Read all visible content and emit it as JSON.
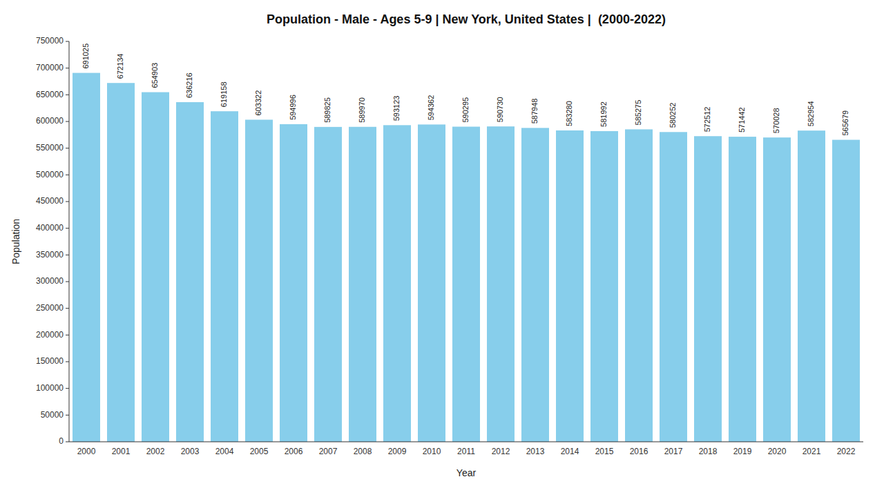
{
  "chart_data": {
    "type": "bar",
    "title": "Population - Male - Ages 5-9 | New York, United States |  (2000-2022)",
    "xlabel": "Year",
    "ylabel": "Population",
    "categories": [
      "2000",
      "2001",
      "2002",
      "2003",
      "2004",
      "2005",
      "2006",
      "2007",
      "2008",
      "2009",
      "2010",
      "2011",
      "2012",
      "2013",
      "2014",
      "2015",
      "2016",
      "2017",
      "2018",
      "2019",
      "2020",
      "2021",
      "2022"
    ],
    "values": [
      691025,
      672134,
      654903,
      636216,
      619158,
      603322,
      594996,
      589825,
      589970,
      593123,
      594362,
      590295,
      590730,
      587948,
      583280,
      581992,
      585275,
      580252,
      572512,
      571442,
      570028,
      582954,
      565679
    ],
    "color": "#87ceeb",
    "ylim": [
      0,
      750000
    ],
    "yticks": [
      0,
      50000,
      100000,
      150000,
      200000,
      250000,
      300000,
      350000,
      400000,
      450000,
      500000,
      550000,
      600000,
      650000,
      700000,
      750000
    ],
    "grid": false,
    "data_labels": true
  }
}
